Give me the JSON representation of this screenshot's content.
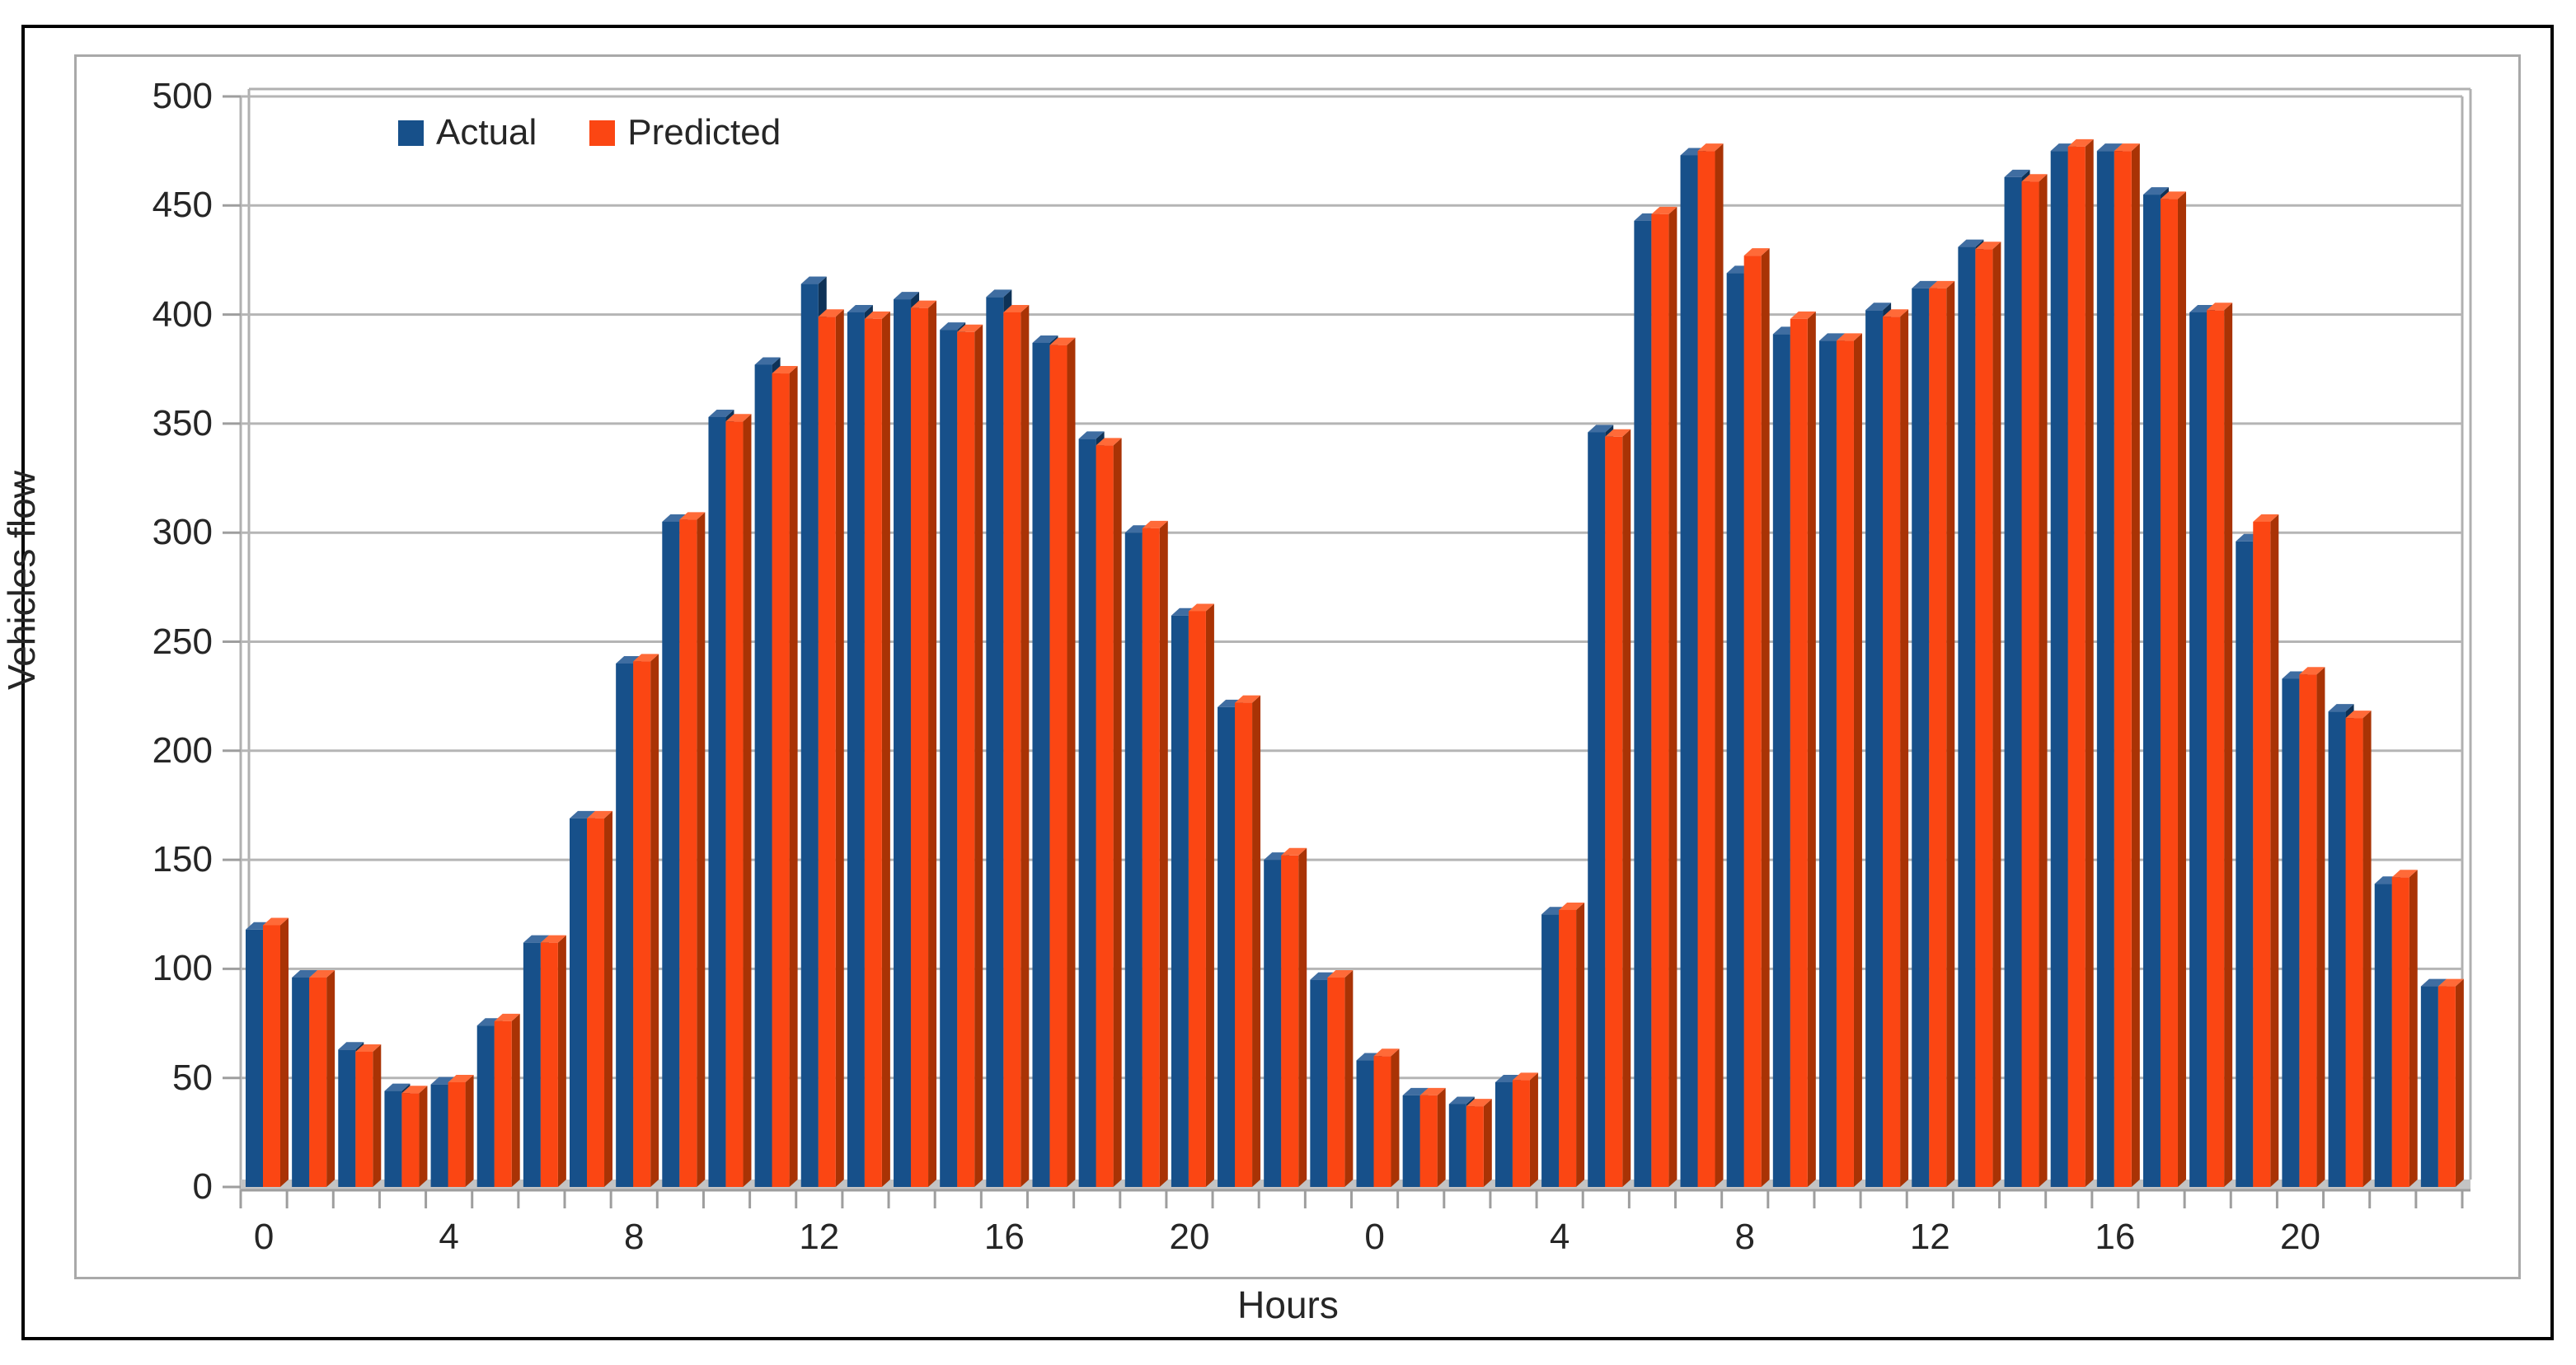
{
  "chart_data": {
    "type": "bar",
    "title": "",
    "xlabel": "Hours",
    "ylabel": "Vehicles flow",
    "ylim": [
      0,
      500
    ],
    "ytick_step": 50,
    "grid": true,
    "legend_position": "top-left-inside-plot",
    "style": "pseudo-3d clustered columns",
    "x": [
      0,
      1,
      2,
      3,
      4,
      5,
      6,
      7,
      8,
      9,
      10,
      11,
      12,
      13,
      14,
      15,
      16,
      17,
      18,
      19,
      20,
      21,
      22,
      23,
      0,
      1,
      2,
      3,
      4,
      5,
      6,
      7,
      8,
      9,
      10,
      11,
      12,
      13,
      14,
      15,
      16,
      17,
      18,
      19,
      20,
      21,
      22,
      23
    ],
    "xtick_labels": [
      0,
      4,
      8,
      12,
      16,
      20,
      0,
      4,
      8,
      12,
      16,
      20
    ],
    "xtick_label_every": 4,
    "series": [
      {
        "name": "Actual",
        "color": "#17508a",
        "values": [
          118,
          96,
          63,
          44,
          47,
          74,
          112,
          169,
          240,
          305,
          353,
          377,
          414,
          401,
          407,
          393,
          408,
          387,
          343,
          300,
          262,
          220,
          150,
          95,
          58,
          42,
          38,
          48,
          125,
          346,
          443,
          473,
          419,
          391,
          388,
          402,
          412,
          431,
          463,
          475,
          475,
          455,
          401,
          296,
          233,
          218,
          139,
          92
        ]
      },
      {
        "name": "Predicted",
        "color": "#fb4613",
        "values": [
          120,
          96,
          62,
          43,
          48,
          76,
          112,
          169,
          241,
          306,
          351,
          373,
          399,
          398,
          403,
          392,
          401,
          386,
          340,
          302,
          264,
          222,
          152,
          96,
          60,
          42,
          37,
          49,
          127,
          344,
          446,
          475,
          427,
          398,
          388,
          399,
          412,
          430,
          461,
          477,
          475,
          453,
          402,
          305,
          235,
          215,
          142,
          92
        ]
      }
    ]
  },
  "legend": {
    "items": [
      {
        "label": "Actual"
      },
      {
        "label": "Predicted"
      }
    ]
  },
  "colors": {
    "actual_front": "#17508a",
    "actual_top": "#3f6da1",
    "actual_side": "#0e3257",
    "predicted_front": "#fb4613",
    "predicted_top": "#ff6a38",
    "predicted_side": "#a93305",
    "gridline": "#b5b5b5",
    "wall_line": "#b0b0b0",
    "floor": "#c4c4c4",
    "tick": "#9e9e9e",
    "text": "#262626",
    "frame": "#a9a9a9",
    "figure_border": "#000000"
  },
  "axis": {
    "y_ticks": [
      0,
      50,
      100,
      150,
      200,
      250,
      300,
      350,
      400,
      450,
      500
    ]
  }
}
